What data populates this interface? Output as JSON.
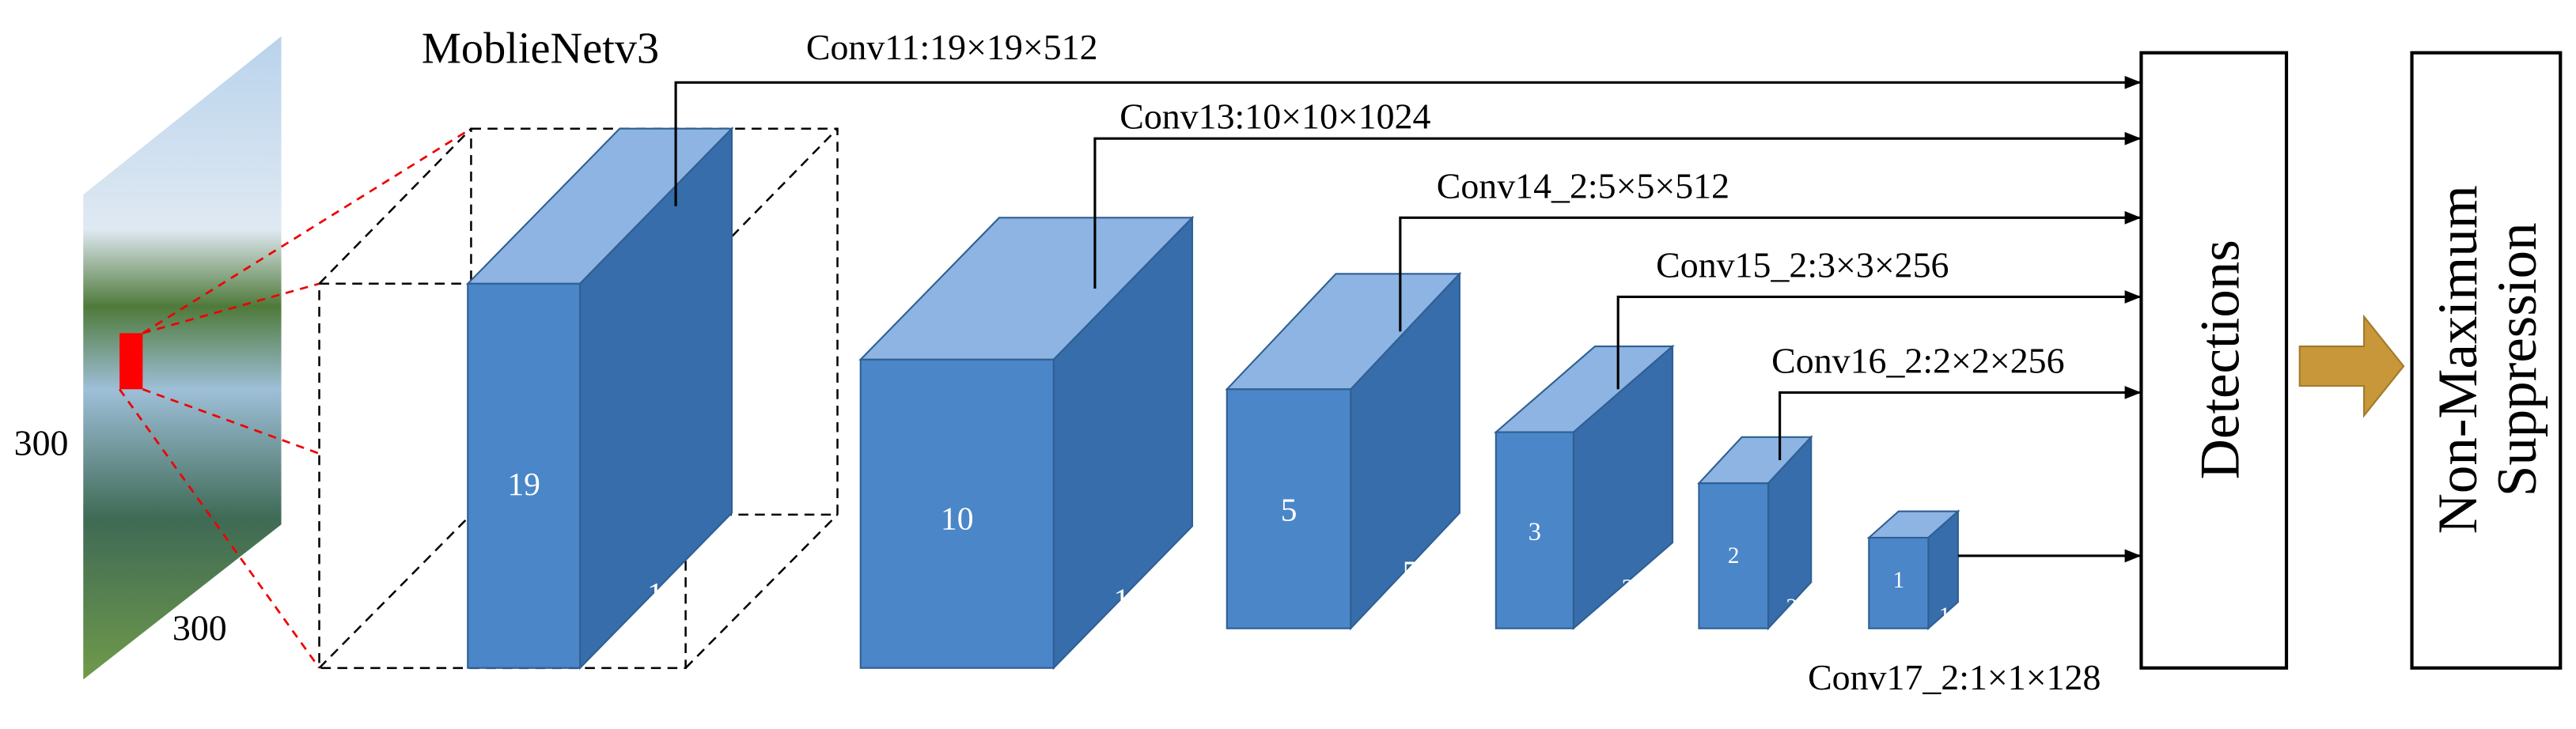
{
  "title": "MoblieNetv3",
  "input": {
    "height_label": "300",
    "width_label": "300"
  },
  "layers": [
    {
      "name": "Conv11:19×19×512",
      "size": 19
    },
    {
      "name": "Conv13:10×10×1024",
      "size": 10
    },
    {
      "name": "Conv14_2:5×5×512",
      "size": 5
    },
    {
      "name": "Conv15_2:3×3×256",
      "size": 3
    },
    {
      "name": "Conv16_2:2×2×256",
      "size": 2
    },
    {
      "name": "Conv17_2:1×1×128",
      "size": 1
    }
  ],
  "detections": "Detections",
  "nms": {
    "line1": "Non-Maximum",
    "line2": "Suppression"
  }
}
